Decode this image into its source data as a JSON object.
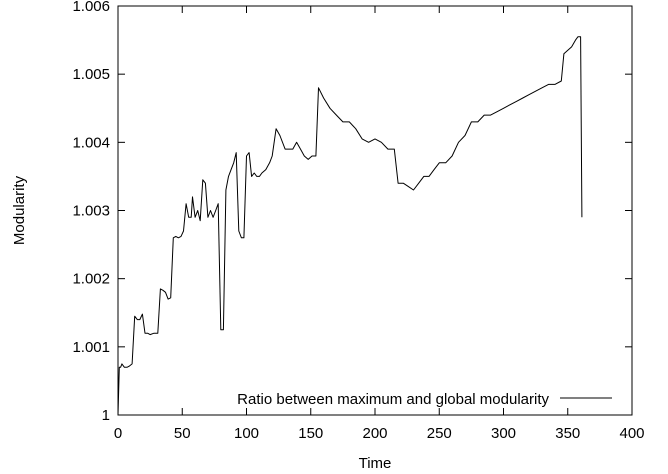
{
  "chart_data": {
    "type": "line",
    "xlabel": "Time",
    "ylabel": "Modularity",
    "xlim": [
      0,
      400
    ],
    "ylim": [
      1,
      1.006
    ],
    "x_ticks": [
      "0",
      "50",
      "100",
      "150",
      "200",
      "250",
      "300",
      "350",
      "400"
    ],
    "y_ticks": [
      "1",
      "1.001",
      "1.002",
      "1.003",
      "1.004",
      "1.005",
      "1.006"
    ],
    "grid": false,
    "legend_position": "bottom-right",
    "series": [
      {
        "name": "Ratio between maximum and global modularity",
        "color": "#000000",
        "points": [
          [
            0,
            1.0
          ],
          [
            1,
            1.0007
          ],
          [
            2,
            1.0007
          ],
          [
            3,
            1.00075
          ],
          [
            5,
            1.0007
          ],
          [
            7,
            1.0007
          ],
          [
            9,
            1.00072
          ],
          [
            11,
            1.00075
          ],
          [
            13,
            1.00145
          ],
          [
            15,
            1.0014
          ],
          [
            17,
            1.0014
          ],
          [
            19,
            1.00148
          ],
          [
            21,
            1.0012
          ],
          [
            23,
            1.0012
          ],
          [
            25,
            1.00118
          ],
          [
            28,
            1.0012
          ],
          [
            31,
            1.0012
          ],
          [
            33,
            1.00185
          ],
          [
            35,
            1.00183
          ],
          [
            37,
            1.0018
          ],
          [
            39,
            1.0017
          ],
          [
            41,
            1.00172
          ],
          [
            43,
            1.0026
          ],
          [
            45,
            1.00262
          ],
          [
            47,
            1.0026
          ],
          [
            49,
            1.00262
          ],
          [
            51,
            1.0027
          ],
          [
            53,
            1.0031
          ],
          [
            55,
            1.0029
          ],
          [
            57,
            1.0029
          ],
          [
            58,
            1.0032
          ],
          [
            60,
            1.0029
          ],
          [
            62,
            1.003
          ],
          [
            64,
            1.00285
          ],
          [
            66,
            1.00345
          ],
          [
            68,
            1.0034
          ],
          [
            70,
            1.0029
          ],
          [
            72,
            1.003
          ],
          [
            74,
            1.0029
          ],
          [
            76,
            1.003
          ],
          [
            78,
            1.0031
          ],
          [
            80,
            1.00125
          ],
          [
            82,
            1.00125
          ],
          [
            84,
            1.0033
          ],
          [
            86,
            1.0035
          ],
          [
            88,
            1.0036
          ],
          [
            90,
            1.0037
          ],
          [
            92,
            1.00385
          ],
          [
            94,
            1.0027
          ],
          [
            96,
            1.0026
          ],
          [
            98,
            1.0026
          ],
          [
            100,
            1.0038
          ],
          [
            102,
            1.00385
          ],
          [
            104,
            1.0035
          ],
          [
            106,
            1.00355
          ],
          [
            108,
            1.0035
          ],
          [
            110,
            1.0035
          ],
          [
            112,
            1.00355
          ],
          [
            115,
            1.0036
          ],
          [
            118,
            1.0037
          ],
          [
            120,
            1.0038
          ],
          [
            123,
            1.0042
          ],
          [
            126,
            1.0041
          ],
          [
            130,
            1.0039
          ],
          [
            133,
            1.0039
          ],
          [
            136,
            1.0039
          ],
          [
            139,
            1.004
          ],
          [
            142,
            1.0039
          ],
          [
            145,
            1.0038
          ],
          [
            148,
            1.00375
          ],
          [
            151,
            1.0038
          ],
          [
            154,
            1.0038
          ],
          [
            156,
            1.0048
          ],
          [
            160,
            1.00465
          ],
          [
            165,
            1.0045
          ],
          [
            170,
            1.0044
          ],
          [
            175,
            1.0043
          ],
          [
            180,
            1.0043
          ],
          [
            185,
            1.0042
          ],
          [
            190,
            1.00405
          ],
          [
            195,
            1.004
          ],
          [
            200,
            1.00405
          ],
          [
            205,
            1.004
          ],
          [
            210,
            1.0039
          ],
          [
            215,
            1.0039
          ],
          [
            218,
            1.0034
          ],
          [
            222,
            1.0034
          ],
          [
            226,
            1.00335
          ],
          [
            230,
            1.0033
          ],
          [
            234,
            1.0034
          ],
          [
            238,
            1.0035
          ],
          [
            242,
            1.0035
          ],
          [
            246,
            1.0036
          ],
          [
            250,
            1.0037
          ],
          [
            255,
            1.0037
          ],
          [
            260,
            1.0038
          ],
          [
            265,
            1.004
          ],
          [
            270,
            1.0041
          ],
          [
            275,
            1.0043
          ],
          [
            280,
            1.0043
          ],
          [
            285,
            1.0044
          ],
          [
            290,
            1.0044
          ],
          [
            295,
            1.00445
          ],
          [
            300,
            1.0045
          ],
          [
            305,
            1.00455
          ],
          [
            310,
            1.0046
          ],
          [
            315,
            1.00465
          ],
          [
            320,
            1.0047
          ],
          [
            325,
            1.00475
          ],
          [
            330,
            1.0048
          ],
          [
            335,
            1.00485
          ],
          [
            340,
            1.00485
          ],
          [
            345,
            1.0049
          ],
          [
            347,
            1.0053
          ],
          [
            350,
            1.00535
          ],
          [
            353,
            1.0054
          ],
          [
            356,
            1.0055
          ],
          [
            358,
            1.00555
          ],
          [
            360,
            1.00555
          ],
          [
            361,
            1.0029
          ]
        ]
      }
    ]
  }
}
